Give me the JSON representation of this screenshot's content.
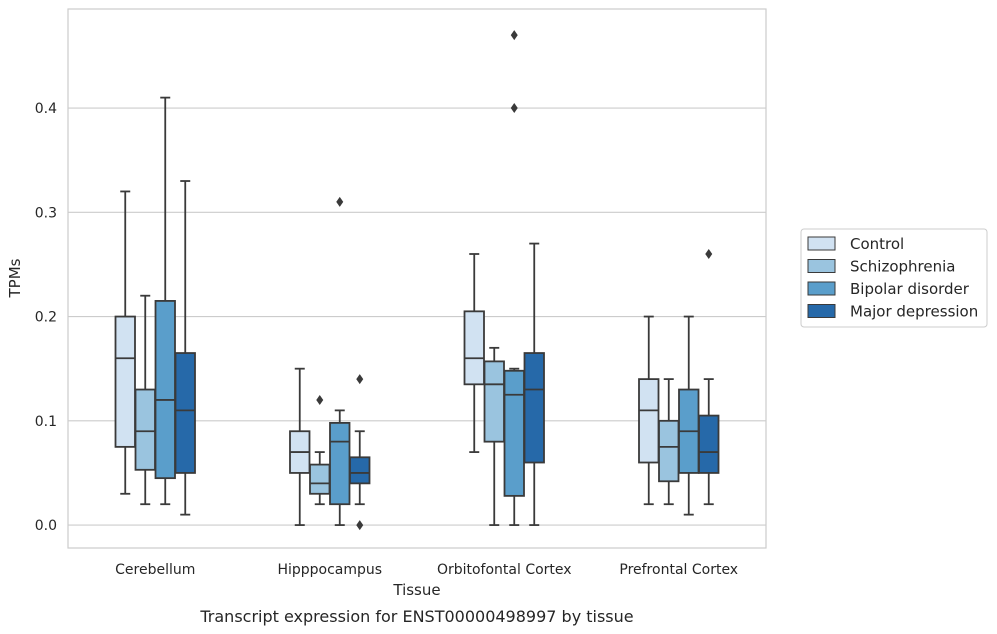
{
  "caption": "Transcript expression for ENST00000498997 by tissue",
  "chart_data": {
    "type": "box",
    "xlabel": "Tissue",
    "ylabel": "TPMs",
    "ylim": [
      -0.022,
      0.495
    ],
    "yticks": [
      0.0,
      0.1,
      0.2,
      0.3,
      0.4
    ],
    "ytick_labels": [
      "0.0",
      "0.1",
      "0.2",
      "0.3",
      "0.4"
    ],
    "grid": "horizontal",
    "legend_position": "right",
    "categories": [
      "Cerebellum",
      "Hipppocampus",
      "Orbitofontal Cortex",
      "Prefrontal Cortex"
    ],
    "series": [
      {
        "name": "Control",
        "color": "#d1e2f2",
        "boxes": [
          {
            "whislo": 0.03,
            "q1": 0.075,
            "med": 0.16,
            "q3": 0.2,
            "whishi": 0.32,
            "fliers": []
          },
          {
            "whislo": 0.0,
            "q1": 0.05,
            "med": 0.07,
            "q3": 0.09,
            "whishi": 0.15,
            "fliers": []
          },
          {
            "whislo": 0.07,
            "q1": 0.135,
            "med": 0.16,
            "q3": 0.205,
            "whishi": 0.26,
            "fliers": []
          },
          {
            "whislo": 0.02,
            "q1": 0.06,
            "med": 0.11,
            "q3": 0.14,
            "whishi": 0.2,
            "fliers": []
          }
        ]
      },
      {
        "name": "Schizophrenia",
        "color": "#9ac4df",
        "boxes": [
          {
            "whislo": 0.02,
            "q1": 0.053,
            "med": 0.09,
            "q3": 0.13,
            "whishi": 0.22,
            "fliers": []
          },
          {
            "whislo": 0.02,
            "q1": 0.03,
            "med": 0.04,
            "q3": 0.058,
            "whishi": 0.07,
            "fliers": [
              0.12
            ]
          },
          {
            "whislo": 0.0,
            "q1": 0.08,
            "med": 0.135,
            "q3": 0.157,
            "whishi": 0.17,
            "fliers": []
          },
          {
            "whislo": 0.02,
            "q1": 0.042,
            "med": 0.075,
            "q3": 0.1,
            "whishi": 0.14,
            "fliers": []
          }
        ]
      },
      {
        "name": "Bipolar disorder",
        "color": "#5a9ecb",
        "boxes": [
          {
            "whislo": 0.02,
            "q1": 0.045,
            "med": 0.12,
            "q3": 0.215,
            "whishi": 0.41,
            "fliers": []
          },
          {
            "whislo": 0.0,
            "q1": 0.02,
            "med": 0.08,
            "q3": 0.098,
            "whishi": 0.11,
            "fliers": [
              0.31
            ]
          },
          {
            "whislo": 0.0,
            "q1": 0.028,
            "med": 0.125,
            "q3": 0.148,
            "whishi": 0.15,
            "fliers": [
              0.4,
              0.47
            ]
          },
          {
            "whislo": 0.01,
            "q1": 0.05,
            "med": 0.09,
            "q3": 0.13,
            "whishi": 0.2,
            "fliers": []
          }
        ]
      },
      {
        "name": "Major depression",
        "color": "#2669a9",
        "boxes": [
          {
            "whislo": 0.01,
            "q1": 0.05,
            "med": 0.11,
            "q3": 0.165,
            "whishi": 0.33,
            "fliers": []
          },
          {
            "whislo": 0.02,
            "q1": 0.04,
            "med": 0.05,
            "q3": 0.065,
            "whishi": 0.09,
            "fliers": [
              0.0,
              0.14
            ]
          },
          {
            "whislo": 0.0,
            "q1": 0.06,
            "med": 0.13,
            "q3": 0.165,
            "whishi": 0.27,
            "fliers": []
          },
          {
            "whislo": 0.02,
            "q1": 0.05,
            "med": 0.07,
            "q3": 0.105,
            "whishi": 0.14,
            "fliers": [
              0.26
            ]
          }
        ]
      }
    ]
  }
}
